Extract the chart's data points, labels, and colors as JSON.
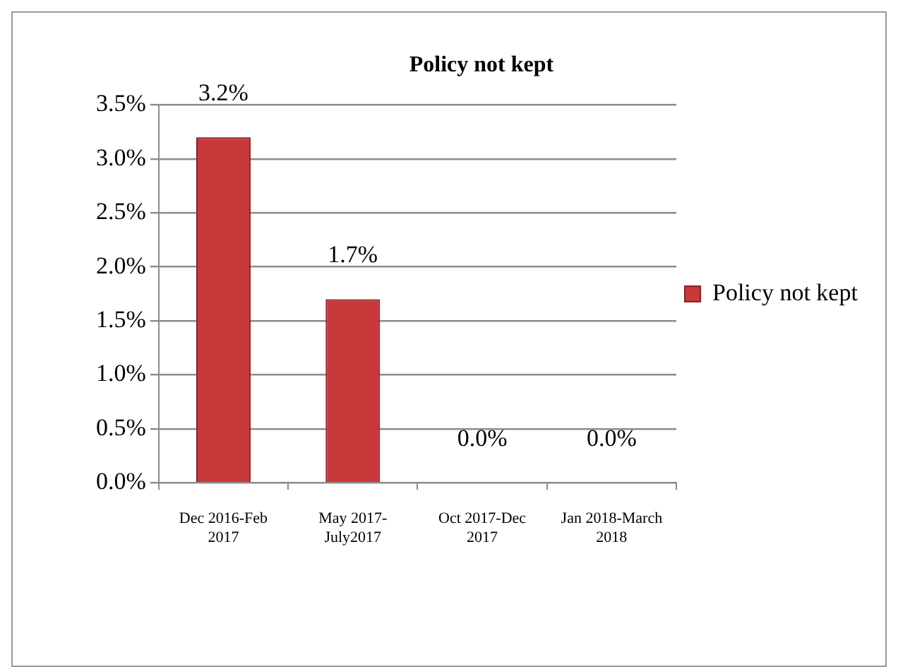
{
  "chart_data": {
    "type": "bar",
    "title": "Policy not kept",
    "categories": [
      "Dec 2016-Feb 2017",
      "May 2017-July2017",
      "Oct 2017-Dec 2017",
      "Jan 2018-March 2018"
    ],
    "series": [
      {
        "name": "Policy not kept",
        "color": "#c8383a",
        "values": [
          3.2,
          1.7,
          0,
          0
        ],
        "value_labels": [
          "3.2%",
          "1.7%",
          "0.0%",
          "0.0%"
        ]
      }
    ],
    "ylim": [
      0,
      3.5
    ],
    "yticks": [
      {
        "value": 0,
        "label": "0.0%"
      },
      {
        "value": 0.5,
        "label": "0.5%"
      },
      {
        "value": 1,
        "label": "1.0%"
      },
      {
        "value": 1.5,
        "label": "1.5%"
      },
      {
        "value": 2,
        "label": "2.0%"
      },
      {
        "value": 2.5,
        "label": "2.5%"
      },
      {
        "value": 3,
        "label": "3.0%"
      },
      {
        "value": 3.5,
        "label": "3.5%"
      }
    ],
    "grid": "y",
    "legend": "right"
  }
}
